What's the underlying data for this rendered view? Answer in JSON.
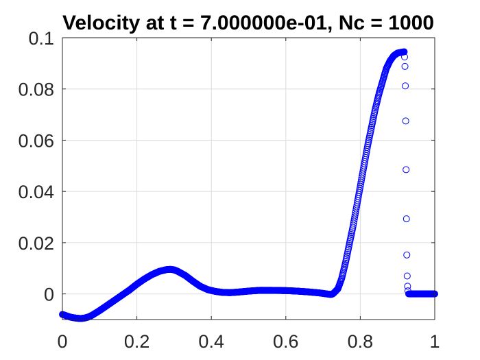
{
  "chart_data": {
    "type": "scatter",
    "title": "Velocity at t = 7.000000e-01, Nc = 1000",
    "xlabel": "",
    "ylabel": "",
    "xlim": [
      0,
      1
    ],
    "ylim": [
      -0.01,
      0.1
    ],
    "xticks": [
      0,
      0.2,
      0.4,
      0.6,
      0.8,
      1
    ],
    "xtick_labels": [
      "0",
      "0.2",
      "0.4",
      "0.6",
      "0.8",
      "1"
    ],
    "yticks": [
      0,
      0.02,
      0.04,
      0.06,
      0.08,
      0.1
    ],
    "ytick_labels": [
      "0",
      "0.02",
      "0.04",
      "0.06",
      "0.08",
      "0.1"
    ],
    "grid": true,
    "marker": "circle-open",
    "color": "#0000ff",
    "curve_points": [
      [
        0.0,
        -0.008
      ],
      [
        0.01,
        -0.0085
      ],
      [
        0.02,
        -0.009
      ],
      [
        0.03,
        -0.0093
      ],
      [
        0.04,
        -0.0095
      ],
      [
        0.05,
        -0.0096
      ],
      [
        0.06,
        -0.0094
      ],
      [
        0.07,
        -0.009
      ],
      [
        0.08,
        -0.0083
      ],
      [
        0.1,
        -0.0065
      ],
      [
        0.12,
        -0.0045
      ],
      [
        0.15,
        -0.0015
      ],
      [
        0.18,
        0.0015
      ],
      [
        0.2,
        0.0038
      ],
      [
        0.22,
        0.0058
      ],
      [
        0.24,
        0.0075
      ],
      [
        0.26,
        0.0088
      ],
      [
        0.28,
        0.0095
      ],
      [
        0.29,
        0.0096
      ],
      [
        0.3,
        0.0094
      ],
      [
        0.31,
        0.0088
      ],
      [
        0.33,
        0.0072
      ],
      [
        0.35,
        0.005
      ],
      [
        0.37,
        0.003
      ],
      [
        0.39,
        0.0017
      ],
      [
        0.41,
        0.001
      ],
      [
        0.43,
        0.0006
      ],
      [
        0.45,
        0.0005
      ],
      [
        0.47,
        0.0007
      ],
      [
        0.5,
        0.0011
      ],
      [
        0.53,
        0.0014
      ],
      [
        0.56,
        0.0014
      ],
      [
        0.6,
        0.0013
      ],
      [
        0.63,
        0.0011
      ],
      [
        0.66,
        0.0008
      ],
      [
        0.69,
        0.0004
      ],
      [
        0.71,
        0.0
      ],
      [
        0.72,
        -0.0002
      ],
      [
        0.725,
        -0.0001
      ],
      [
        0.73,
        0.0005
      ],
      [
        0.74,
        0.002
      ],
      [
        0.75,
        0.006
      ],
      [
        0.76,
        0.012
      ],
      [
        0.77,
        0.019
      ],
      [
        0.78,
        0.026
      ],
      [
        0.79,
        0.034
      ],
      [
        0.8,
        0.042
      ],
      [
        0.81,
        0.05
      ],
      [
        0.82,
        0.058
      ],
      [
        0.83,
        0.065
      ],
      [
        0.84,
        0.072
      ],
      [
        0.85,
        0.078
      ],
      [
        0.86,
        0.083
      ],
      [
        0.87,
        0.088
      ],
      [
        0.88,
        0.091
      ],
      [
        0.89,
        0.093
      ],
      [
        0.9,
        0.094
      ],
      [
        0.91,
        0.0943
      ],
      [
        0.918,
        0.0945
      ]
    ],
    "jump_points": [
      [
        0.919,
        0.0925
      ],
      [
        0.92,
        0.0888
      ],
      [
        0.921,
        0.0812
      ],
      [
        0.922,
        0.0675
      ],
      [
        0.923,
        0.0485
      ],
      [
        0.924,
        0.0293
      ],
      [
        0.925,
        0.0152
      ],
      [
        0.926,
        0.007
      ],
      [
        0.927,
        0.003
      ],
      [
        0.928,
        0.0012
      ]
    ],
    "tail_points": [
      [
        0.93,
        0.0
      ],
      [
        1.0,
        0.0
      ]
    ],
    "sampling_step": 0.001
  }
}
